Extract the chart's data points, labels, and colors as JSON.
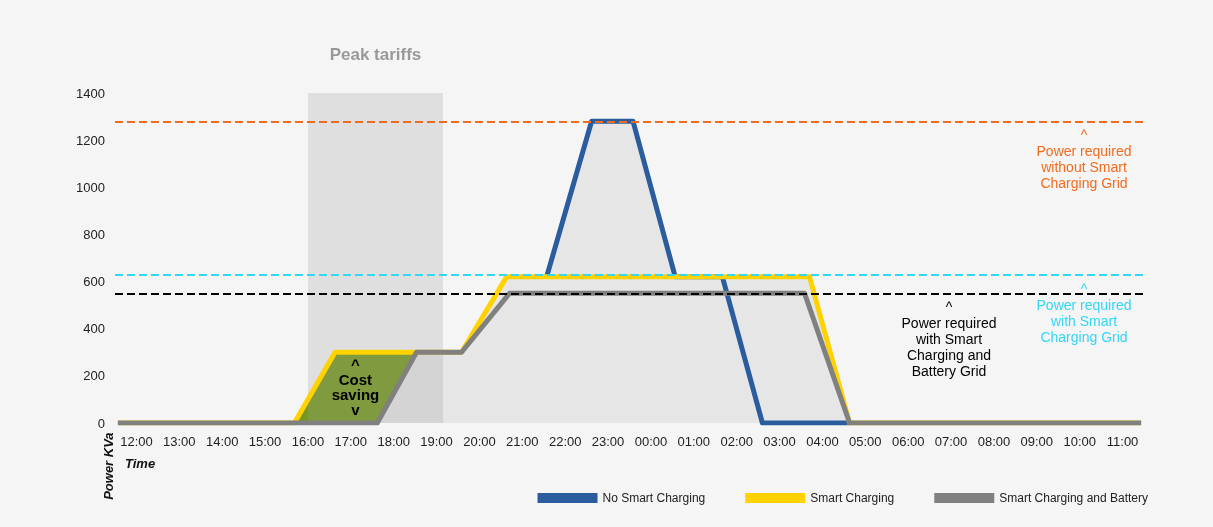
{
  "chart_data": {
    "type": "area",
    "xlabel": "Time",
    "ylabel": "Power KVa",
    "xlim": [
      "2000-01-01T11:30",
      "2000-01-02T11:30"
    ],
    "xticks": [
      {
        "value": "2000-01-01T12:00",
        "label": "12:00"
      },
      {
        "value": "2000-01-01T13:00",
        "label": "13:00"
      },
      {
        "value": "2000-01-01T14:00",
        "label": "14:00"
      },
      {
        "value": "2000-01-01T15:00",
        "label": "15:00"
      },
      {
        "value": "2000-01-01T16:00",
        "label": "16:00"
      },
      {
        "value": "2000-01-01T17:00",
        "label": "17:00"
      },
      {
        "value": "2000-01-01T18:00",
        "label": "18:00"
      },
      {
        "value": "2000-01-01T19:00",
        "label": "19:00"
      },
      {
        "value": "2000-01-01T20:00",
        "label": "20:00"
      },
      {
        "value": "2000-01-01T21:00",
        "label": "21:00"
      },
      {
        "value": "2000-01-01T22:00",
        "label": "22:00"
      },
      {
        "value": "2000-01-01T23:00",
        "label": "23:00"
      },
      {
        "value": "2000-01-02T00:00",
        "label": "00:00"
      },
      {
        "value": "2000-01-02T01:00",
        "label": "01:00"
      },
      {
        "value": "2000-01-02T02:00",
        "label": "02:00"
      },
      {
        "value": "2000-01-02T03:00",
        "label": "03:00"
      },
      {
        "value": "2000-01-02T04:00",
        "label": "04:00"
      },
      {
        "value": "2000-01-02T05:00",
        "label": "05:00"
      },
      {
        "value": "2000-01-02T06:00",
        "label": "06:00"
      },
      {
        "value": "2000-01-02T07:00",
        "label": "07:00"
      },
      {
        "value": "2000-01-02T08:00",
        "label": "08:00"
      },
      {
        "value": "2000-01-02T09:00",
        "label": "09:00"
      },
      {
        "value": "2000-01-02T10:00",
        "label": "10:00"
      },
      {
        "value": "2000-01-02T11:00",
        "label": "11:00"
      }
    ],
    "ylim": [
      0,
      1400
    ],
    "yticks": [
      0,
      200,
      400,
      600,
      800,
      1000,
      1200,
      1400
    ],
    "series": [
      {
        "name": "No Smart Charging",
        "color": "#2b5c9e",
        "x": [
          "2000-01-01T21:34",
          "2000-01-01T22:37",
          "2000-01-01T23:35",
          "2000-01-02T00:34",
          "2000-01-02T01:40",
          "2000-01-02T02:36",
          "2000-01-02T04:38"
        ],
        "values": [
          620,
          1280,
          1280,
          620,
          620,
          0,
          0
        ]
      },
      {
        "name": "Smart Charging",
        "color": "#ffd200",
        "x": [
          "2000-01-01T11:34",
          "2000-01-01T15:41",
          "2000-01-01T16:38",
          "2000-01-01T19:35",
          "2000-01-01T20:38",
          "2000-01-02T03:42",
          "2000-01-02T04:38",
          "2000-01-02T11:26"
        ],
        "values": [
          0,
          0,
          300,
          300,
          620,
          620,
          0,
          0
        ]
      },
      {
        "name": "Smart Charging and Battery",
        "type": "line",
        "color": "#808080",
        "x": [
          "2000-01-01T11:34",
          "2000-01-01T17:37",
          "2000-01-01T18:32",
          "2000-01-01T19:35",
          "2000-01-01T20:42",
          "2000-01-02T03:35",
          "2000-01-02T04:38",
          "2000-01-02T11:26"
        ],
        "values": [
          0,
          0,
          300,
          300,
          550,
          550,
          0,
          0
        ]
      }
    ],
    "ref_lines": [
      {
        "axis": "y",
        "value": 1280,
        "label": "^\nPower required\nwithout Smart\nCharging Grid",
        "color": "#f26b1d",
        "line_style": "dashed"
      },
      {
        "axis": "y",
        "value": 630,
        "label": "^\nPower required\nwith Smart\nCharging Grid",
        "color": "#33d6f5",
        "line_style": "dashed"
      },
      {
        "axis": "y",
        "value": 550,
        "label": "^\nPower required\nwith Smart\nCharging and\nBattery Grid",
        "color": "#000000",
        "line_style": "dashed"
      }
    ],
    "bands": [
      {
        "axis": "x",
        "from": "2000-01-01T16:00",
        "to": "2000-01-01T19:09",
        "label": "Peak tariffs",
        "color": "#a0a0a0"
      }
    ],
    "annotations": [
      "^\nCost\nsaving\nv"
    ],
    "legend": "bottom right",
    "grid": false,
    "marker": "none",
    "line_style": "solid"
  }
}
